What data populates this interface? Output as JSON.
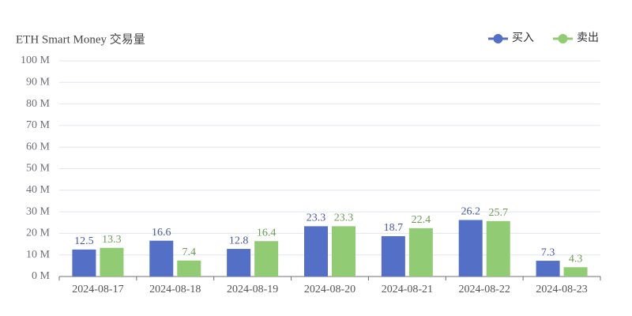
{
  "chart_data": {
    "type": "bar",
    "title": "ETH Smart Money 交易量",
    "categories": [
      "2024-08-17",
      "2024-08-18",
      "2024-08-19",
      "2024-08-20",
      "2024-08-21",
      "2024-08-22",
      "2024-08-23"
    ],
    "series": [
      {
        "name": "买入",
        "color": "#5470c6",
        "label_color": "#4a5a9a",
        "values": [
          12.5,
          16.6,
          12.8,
          23.3,
          18.7,
          26.2,
          7.3
        ]
      },
      {
        "name": "卖出",
        "color": "#91cc75",
        "label_color": "#6f9a55",
        "values": [
          13.3,
          7.4,
          16.4,
          23.3,
          22.4,
          25.7,
          4.3
        ]
      }
    ],
    "ylim": [
      0,
      100
    ],
    "yticks": [
      {
        "value": 0,
        "label": "0 M"
      },
      {
        "value": 10,
        "label": "10 M"
      },
      {
        "value": 20,
        "label": "20 M"
      },
      {
        "value": 30,
        "label": "30 M"
      },
      {
        "value": 40,
        "label": "40 M"
      },
      {
        "value": 50,
        "label": "50 M"
      },
      {
        "value": 60,
        "label": "60 M"
      },
      {
        "value": 70,
        "label": "70 M"
      },
      {
        "value": 80,
        "label": "80 M"
      },
      {
        "value": 90,
        "label": "90 M"
      },
      {
        "value": 100,
        "label": "100 M"
      }
    ],
    "grid": true,
    "legend": "top-right"
  }
}
